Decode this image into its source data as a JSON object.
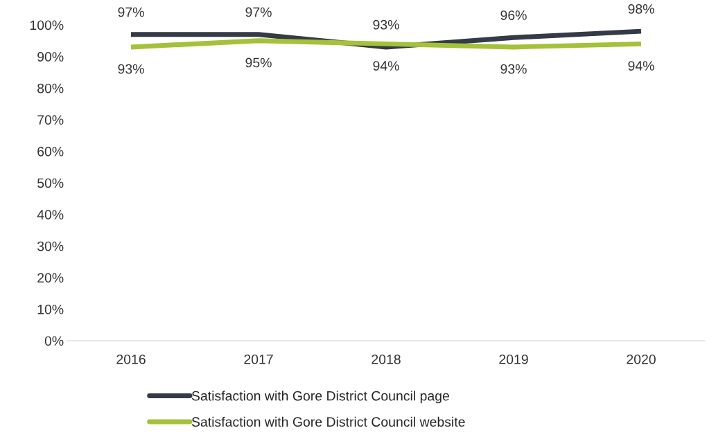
{
  "chart_data": {
    "type": "line",
    "categories": [
      "2016",
      "2017",
      "2018",
      "2019",
      "2020"
    ],
    "series": [
      {
        "name": "Satisfaction with Gore District Council page",
        "color": "#343a46",
        "values": [
          97,
          97,
          93,
          96,
          98
        ],
        "value_labels": [
          "97%",
          "97%",
          "93%",
          "96%",
          "98%"
        ]
      },
      {
        "name": "Satisfaction with Gore District Council website",
        "color": "#a4c139",
        "values": [
          93,
          95,
          94,
          93,
          94
        ],
        "value_labels": [
          "93%",
          "95%",
          "94%",
          "93%",
          "94%"
        ]
      }
    ],
    "ylim": [
      0,
      100
    ],
    "yticks": [
      {
        "value": 0,
        "label": "0%"
      },
      {
        "value": 10,
        "label": "10%"
      },
      {
        "value": 20,
        "label": "20%"
      },
      {
        "value": 30,
        "label": "30%"
      },
      {
        "value": 40,
        "label": "40%"
      },
      {
        "value": 50,
        "label": "50%"
      },
      {
        "value": 60,
        "label": "60%"
      },
      {
        "value": 70,
        "label": "70%"
      },
      {
        "value": 80,
        "label": "80%"
      },
      {
        "value": 90,
        "label": "90%"
      },
      {
        "value": 100,
        "label": "100%"
      }
    ],
    "grid": false,
    "legend": "bottom",
    "marker": "none",
    "line_style": "solid"
  }
}
